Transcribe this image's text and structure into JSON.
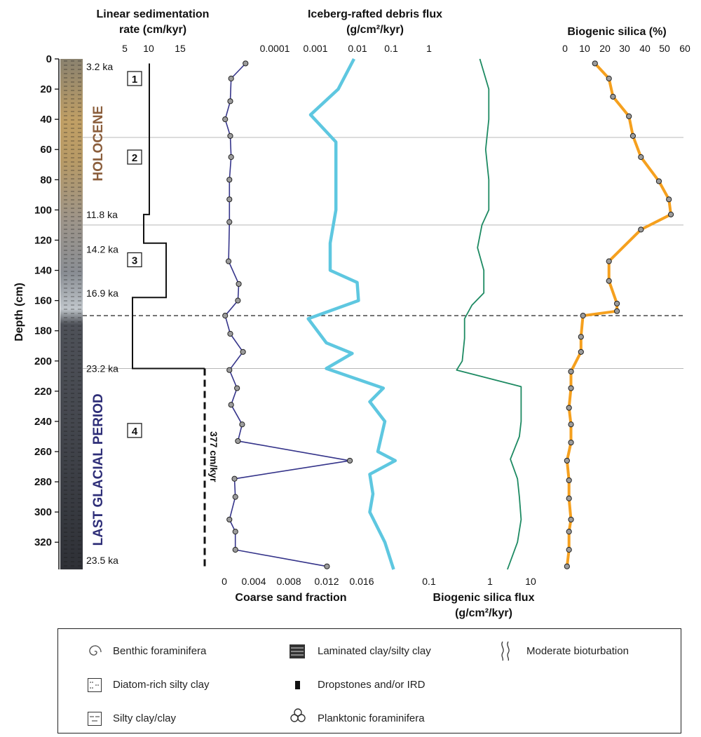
{
  "chart_data": {
    "type": "line",
    "depth_axis": {
      "label": "Depth (cm)",
      "range": [
        0,
        338
      ],
      "ticks": [
        0,
        20,
        40,
        60,
        80,
        100,
        120,
        140,
        160,
        180,
        200,
        220,
        240,
        260,
        280,
        300,
        320
      ]
    },
    "axes_top": {
      "lsr": {
        "label_line1": "Linear sedimentation",
        "label_line2": "rate (cm/kyr)",
        "ticks": [
          "5",
          "10",
          "15"
        ]
      },
      "ird": {
        "label_line1": "Iceberg-rafted debris flux",
        "label_line2": "(g/cm²/kyr)",
        "ticks": [
          "0.0001",
          "0.001",
          "0.01",
          "0.1",
          "1"
        ]
      },
      "silica": {
        "label": "Biogenic silica (%)",
        "ticks": [
          "0",
          "10",
          "20",
          "30",
          "40",
          "50",
          "60"
        ],
        "range": [
          0,
          60
        ]
      }
    },
    "axes_bottom": {
      "sand": {
        "label": "Coarse sand fraction",
        "ticks": [
          "0",
          "0.004",
          "0.008",
          "0.012",
          "0.016"
        ]
      },
      "bsf": {
        "label_line1": "Biogenic silica flux",
        "label_line2": "(g/cm²/kyr)",
        "ticks": [
          "0.1",
          "1",
          "10"
        ]
      }
    },
    "units": [
      {
        "id": "1",
        "depth": 13
      },
      {
        "id": "2",
        "depth": 65
      },
      {
        "id": "3",
        "depth": 133
      },
      {
        "id": "4",
        "depth": 246
      }
    ],
    "intervals": [
      {
        "name": "HOLOCENE",
        "color": "#8b5e3c",
        "from": 0,
        "to": 110
      },
      {
        "name": "LAST GLACIAL PERIOD",
        "color": "#2e2e78",
        "from": 205,
        "to": 338
      }
    ],
    "age_labels": [
      {
        "text": "3.2 ka",
        "depth": 5
      },
      {
        "text": "11.8 ka",
        "depth": 103
      },
      {
        "text": "14.2 ka",
        "depth": 126
      },
      {
        "text": "16.9 ka",
        "depth": 155
      },
      {
        "text": "23.2 ka",
        "depth": 205
      },
      {
        "text": "23.5 ka",
        "depth": 332
      }
    ],
    "boundaries": [
      {
        "depth": 52,
        "style": "solid"
      },
      {
        "depth": 110,
        "style": "solid"
      },
      {
        "depth": 170,
        "style": "dashed"
      },
      {
        "depth": 205,
        "style": "solid"
      }
    ],
    "lsr_annotation": "377 cm/kyr",
    "series": [
      {
        "name": "Linear sedimentation rate",
        "unit": "cm/kyr",
        "steps": [
          {
            "from": 3,
            "to": 103,
            "value": 11
          },
          {
            "from": 103,
            "to": 122,
            "value": 10
          },
          {
            "from": 122,
            "to": 158,
            "value": 14
          },
          {
            "from": 158,
            "to": 205,
            "value": 8
          }
        ],
        "dashed_value": 377
      },
      {
        "name": "Coarse sand fraction",
        "points": [
          [
            3,
            0.0025
          ],
          [
            13,
            0.0008
          ],
          [
            28,
            0.0007
          ],
          [
            40,
            0.0001
          ],
          [
            51,
            0.0007
          ],
          [
            65,
            0.0008
          ],
          [
            80,
            0.0006
          ],
          [
            93,
            0.0006
          ],
          [
            108,
            0.0006
          ],
          [
            134,
            0.0005
          ],
          [
            149,
            0.0017
          ],
          [
            160,
            0.0016
          ],
          [
            170,
            0.0001
          ],
          [
            182,
            0.0007
          ],
          [
            194,
            0.0022
          ],
          [
            206,
            0.0006
          ],
          [
            218,
            0.0015
          ],
          [
            229,
            0.0008
          ],
          [
            242,
            0.0021
          ],
          [
            253,
            0.0016
          ],
          [
            266,
            0.0148
          ],
          [
            278,
            0.0012
          ],
          [
            290,
            0.0013
          ],
          [
            305,
            0.0006
          ],
          [
            313,
            0.0013
          ],
          [
            325,
            0.0013
          ],
          [
            336,
            0.0121
          ]
        ]
      },
      {
        "name": "Iceberg-rafted debris flux",
        "points": [
          [
            0,
            0.01
          ],
          [
            20,
            0.004
          ],
          [
            37,
            0.0008
          ],
          [
            55,
            0.0035
          ],
          [
            80,
            0.0035
          ],
          [
            100,
            0.0035
          ],
          [
            122,
            0.0025
          ],
          [
            140,
            0.0025
          ],
          [
            148,
            0.012
          ],
          [
            160,
            0.013
          ],
          [
            172,
            0.0007
          ],
          [
            188,
            0.002
          ],
          [
            195,
            0.009
          ],
          [
            205,
            0.002
          ],
          [
            218,
            0.055
          ],
          [
            227,
            0.025
          ],
          [
            240,
            0.06
          ],
          [
            260,
            0.04
          ],
          [
            266,
            0.11
          ],
          [
            275,
            0.025
          ],
          [
            288,
            0.03
          ],
          [
            300,
            0.025
          ],
          [
            320,
            0.06
          ],
          [
            338,
            0.1
          ]
        ]
      },
      {
        "name": "Biogenic silica flux",
        "points": [
          [
            0,
            1.0
          ],
          [
            20,
            1.5
          ],
          [
            40,
            1.5
          ],
          [
            60,
            1.3
          ],
          [
            80,
            1.5
          ],
          [
            100,
            1.5
          ],
          [
            110,
            1.1
          ],
          [
            125,
            0.9
          ],
          [
            140,
            1.2
          ],
          [
            155,
            1.2
          ],
          [
            163,
            0.7
          ],
          [
            172,
            0.5
          ],
          [
            185,
            0.5
          ],
          [
            200,
            0.45
          ],
          [
            206,
            0.35
          ],
          [
            217,
            6.5
          ],
          [
            240,
            6.5
          ],
          [
            250,
            6.0
          ],
          [
            265,
            4.0
          ],
          [
            278,
            5.5
          ],
          [
            290,
            6.0
          ],
          [
            305,
            6.5
          ],
          [
            320,
            5.5
          ],
          [
            338,
            3.5
          ]
        ]
      },
      {
        "name": "Biogenic silica (%)",
        "points": [
          [
            3,
            15
          ],
          [
            13,
            22
          ],
          [
            25,
            24
          ],
          [
            38,
            32
          ],
          [
            51,
            34
          ],
          [
            65,
            38
          ],
          [
            81,
            47
          ],
          [
            93,
            52
          ],
          [
            103,
            53
          ],
          [
            113,
            38
          ],
          [
            134,
            22
          ],
          [
            147,
            22
          ],
          [
            162,
            26
          ],
          [
            167,
            26
          ],
          [
            170,
            9
          ],
          [
            184,
            8
          ],
          [
            194,
            8
          ],
          [
            207,
            3
          ],
          [
            218,
            3
          ],
          [
            231,
            2
          ],
          [
            242,
            3
          ],
          [
            254,
            3
          ],
          [
            266,
            1
          ],
          [
            279,
            2
          ],
          [
            291,
            2
          ],
          [
            305,
            3
          ],
          [
            313,
            2
          ],
          [
            325,
            2
          ],
          [
            336,
            1
          ]
        ]
      }
    ],
    "colors": {
      "sand": "#35348a",
      "ird": "#5ec7e0",
      "bsf": "#1d8a62",
      "silica": "#f5a01e",
      "lsr": "#111111",
      "dot_fill": "#9c9c9c"
    }
  },
  "legend": {
    "items": [
      {
        "icon": "benthic-foraminifera-icon",
        "label": "Benthic foraminifera"
      },
      {
        "icon": "laminated-clay-icon",
        "label": "Laminated clay/silty clay"
      },
      {
        "icon": "moderate-bioturbation-icon",
        "label": "Moderate bioturbation"
      },
      {
        "icon": "diatom-silty-clay-icon",
        "label": "Diatom-rich silty clay"
      },
      {
        "icon": "dropstones-icon",
        "label": "Dropstones and/or IRD"
      },
      {
        "icon": "silty-clay-icon",
        "label": "Silty clay/clay"
      },
      {
        "icon": "planktonic-foraminifera-icon",
        "label": "Planktonic foraminifera"
      }
    ]
  }
}
